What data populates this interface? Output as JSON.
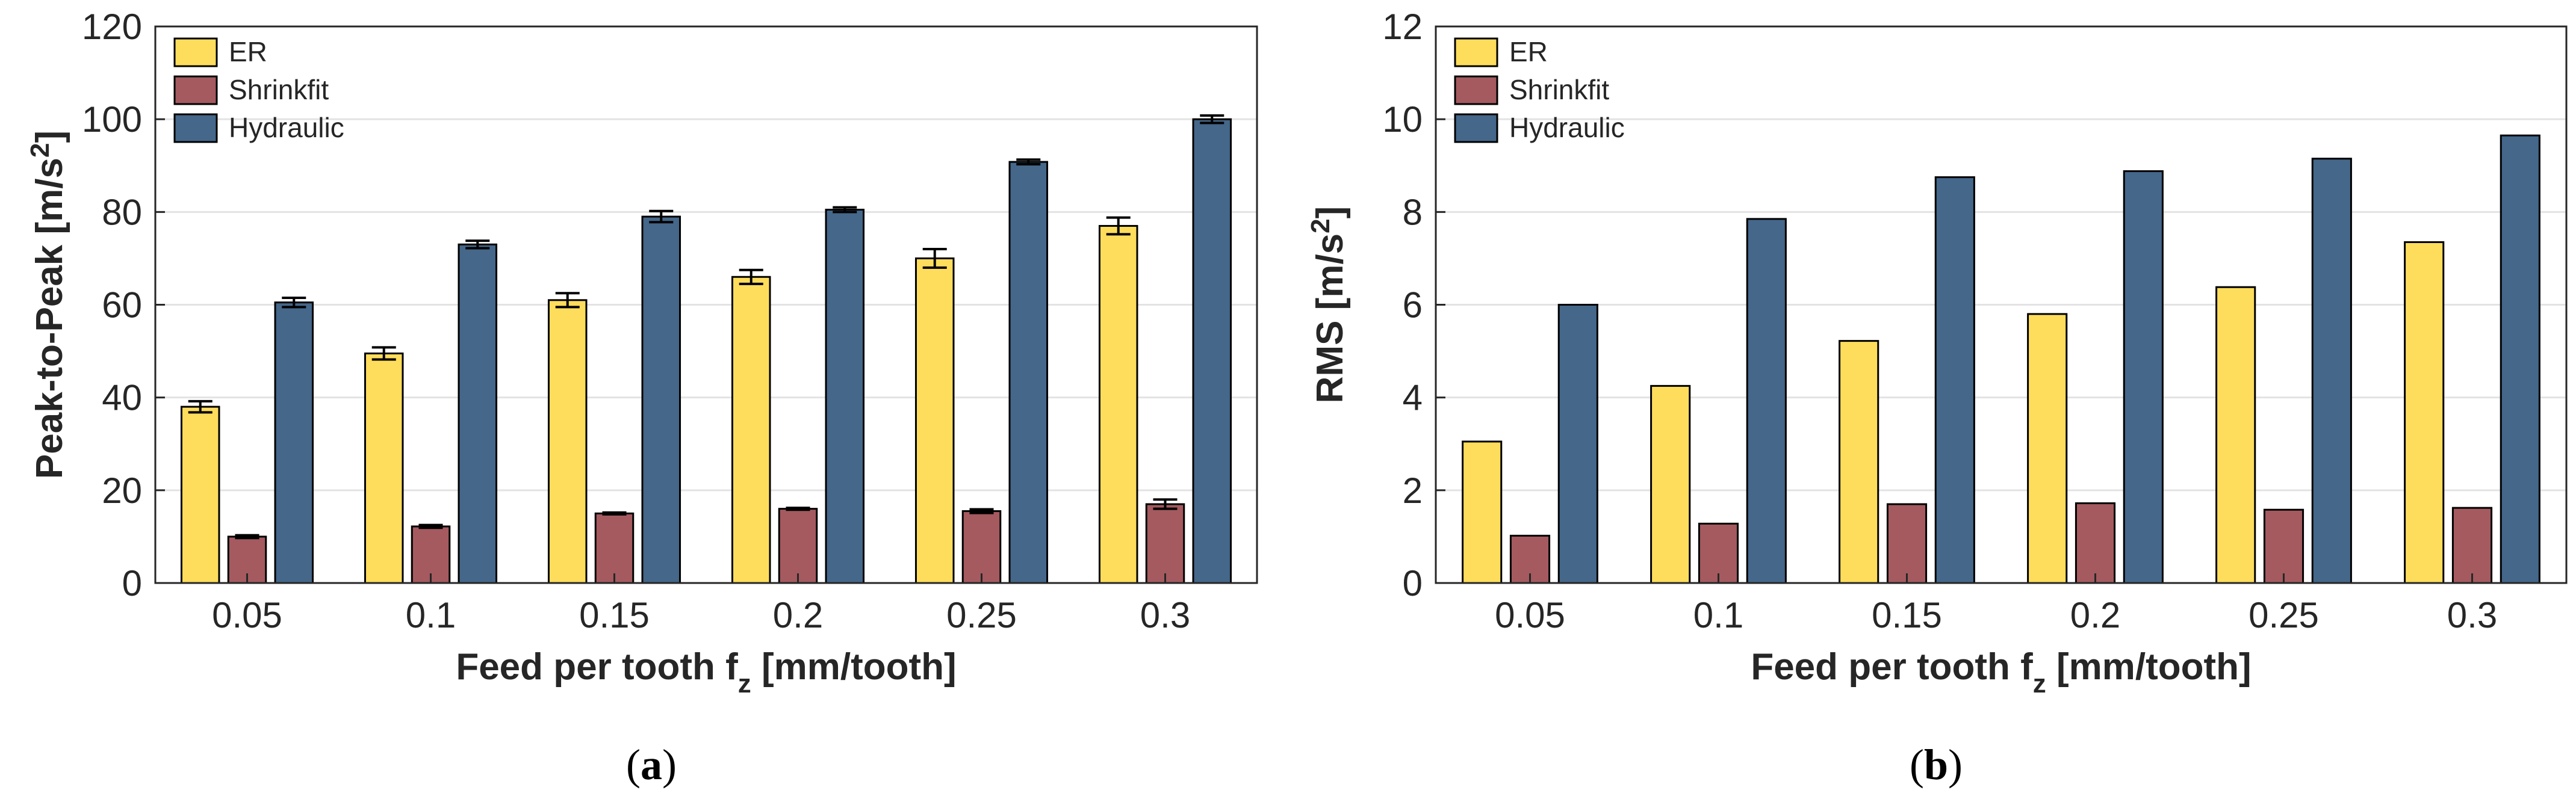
{
  "colors": {
    "ER": "#FFDD5C",
    "Shrinkfit": "#A45A5F",
    "Hydraulic": "#44678A",
    "grid": "#E3E3E3",
    "axis": "#262626"
  },
  "chart_data": [
    {
      "panel_label": "a",
      "type": "bar",
      "title": "",
      "xlabel": "Feed per tooth f",
      "xlabel_sub": "z",
      "xlabel_suffix": " [mm/tooth]",
      "ylabel": "Peak-to-Peak [m/s",
      "ylabel_sup": "2",
      "ylabel_suffix": "]",
      "categories": [
        "0.05",
        "0.1",
        "0.15",
        "0.2",
        "0.25",
        "0.3"
      ],
      "ylim": [
        0,
        120
      ],
      "yticks": [
        0,
        20,
        40,
        60,
        80,
        100,
        120
      ],
      "grid": true,
      "legend_position": "top-left",
      "series": [
        {
          "name": "ER",
          "values": [
            38,
            49.5,
            61,
            66,
            70,
            77
          ],
          "errors": [
            1.2,
            1.3,
            1.5,
            1.5,
            2,
            1.8
          ]
        },
        {
          "name": "Shrinkfit",
          "values": [
            10,
            12.2,
            15,
            16,
            15.5,
            17
          ],
          "errors": [
            0.3,
            0.3,
            0.2,
            0.2,
            0.4,
            1
          ]
        },
        {
          "name": "Hydraulic",
          "values": [
            60.5,
            73,
            79,
            80.5,
            90.8,
            100
          ],
          "errors": [
            1,
            0.8,
            1.2,
            0.5,
            0.5,
            0.8
          ]
        }
      ]
    },
    {
      "panel_label": "b",
      "type": "bar",
      "title": "",
      "xlabel": "Feed per tooth f",
      "xlabel_sub": "z",
      "xlabel_suffix": " [mm/tooth]",
      "ylabel": "RMS [m/s",
      "ylabel_sup": "2",
      "ylabel_suffix": "]",
      "categories": [
        "0.05",
        "0.1",
        "0.15",
        "0.2",
        "0.25",
        "0.3"
      ],
      "ylim": [
        0,
        12
      ],
      "yticks": [
        0,
        2,
        4,
        6,
        8,
        10,
        12
      ],
      "grid": true,
      "legend_position": "top-left",
      "series": [
        {
          "name": "ER",
          "values": [
            3.05,
            4.25,
            5.22,
            5.8,
            6.38,
            7.35
          ],
          "errors": []
        },
        {
          "name": "Shrinkfit",
          "values": [
            1.02,
            1.28,
            1.7,
            1.72,
            1.58,
            1.62
          ],
          "errors": []
        },
        {
          "name": "Hydraulic",
          "values": [
            6,
            7.85,
            8.75,
            8.88,
            9.15,
            9.65
          ],
          "errors": []
        }
      ]
    }
  ]
}
